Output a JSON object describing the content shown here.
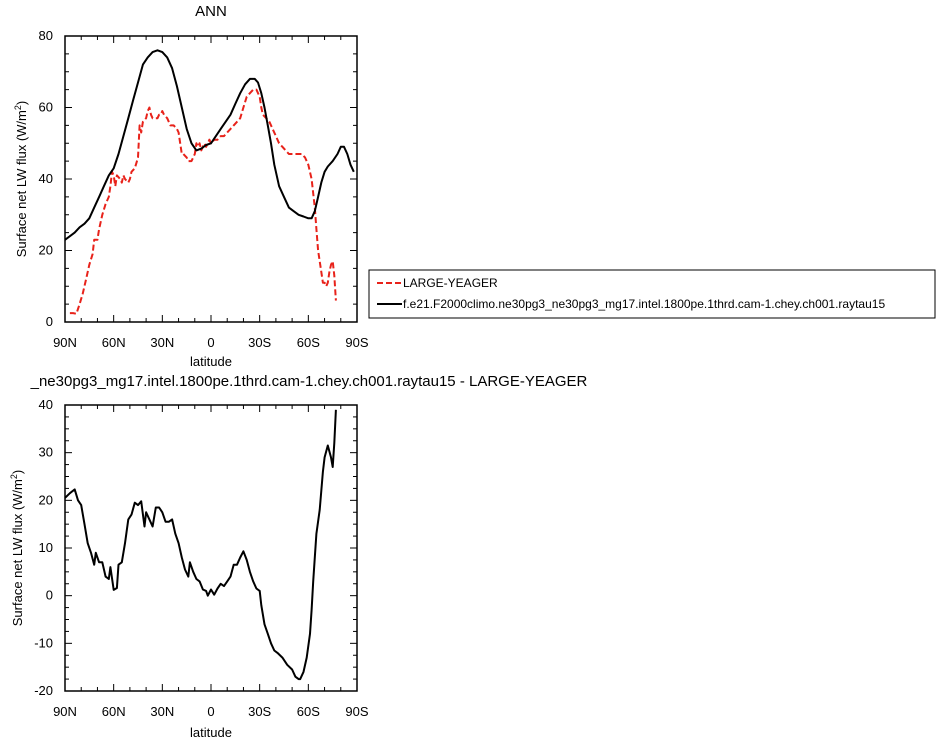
{
  "chart_data": [
    {
      "type": "line",
      "title": "ANN",
      "xlabel": "latitude",
      "ylabel": "Surface net LW flux (W/m",
      "ylabel_sup": "2",
      "ylabel_end": ")",
      "x_tick_labels": [
        "90N",
        "60N",
        "30N",
        "0",
        "30S",
        "60S",
        "90S"
      ],
      "x_tick_values": [
        90,
        60,
        30,
        0,
        -30,
        -60,
        -90
      ],
      "xlim": [
        90,
        -90
      ],
      "ylim": [
        0,
        80
      ],
      "y_ticks": [
        0,
        20,
        40,
        60,
        80
      ],
      "legend_position": "right",
      "series": [
        {
          "name": "LARGE-YEAGER",
          "color": "#e8221a",
          "dash": "dashed",
          "points": [
            [
              87,
              2.5
            ],
            [
              85,
              2.5
            ],
            [
              83,
              2.3
            ],
            [
              81,
              5
            ],
            [
              79,
              8
            ],
            [
              77,
              12
            ],
            [
              75,
              16
            ],
            [
              73,
              19
            ],
            [
              72,
              23
            ],
            [
              70,
              23
            ],
            [
              69,
              26
            ],
            [
              67,
              30
            ],
            [
              65,
              33
            ],
            [
              63,
              35
            ],
            [
              62,
              38
            ],
            [
              61,
              42
            ],
            [
              60,
              41
            ],
            [
              59,
              38
            ],
            [
              58,
              41
            ],
            [
              56,
              40
            ],
            [
              55,
              39
            ],
            [
              54,
              41
            ],
            [
              53,
              40
            ],
            [
              51,
              39
            ],
            [
              50,
              40
            ],
            [
              49,
              42
            ],
            [
              47,
              43
            ],
            [
              45,
              46
            ],
            [
              44,
              55
            ],
            [
              43,
              53
            ],
            [
              42,
              56
            ],
            [
              40,
              57
            ],
            [
              39,
              59
            ],
            [
              38,
              60
            ],
            [
              37,
              58
            ],
            [
              36,
              57
            ],
            [
              35,
              57
            ],
            [
              33,
              57
            ],
            [
              32,
              58
            ],
            [
              31,
              58
            ],
            [
              30,
              59
            ],
            [
              29,
              58
            ],
            [
              27,
              57
            ],
            [
              26,
              56
            ],
            [
              25,
              55
            ],
            [
              23,
              55
            ],
            [
              21,
              54
            ],
            [
              20,
              53
            ],
            [
              19,
              50
            ],
            [
              18,
              47
            ],
            [
              17,
              47
            ],
            [
              15,
              46
            ],
            [
              14,
              45
            ],
            [
              12,
              45
            ],
            [
              10,
              47
            ],
            [
              9,
              50
            ],
            [
              8,
              49
            ],
            [
              7,
              50
            ],
            [
              6,
              48
            ],
            [
              5,
              49
            ],
            [
              4,
              50
            ],
            [
              3,
              49
            ],
            [
              2,
              50
            ],
            [
              1,
              51
            ],
            [
              0,
              50
            ],
            [
              -2,
              51
            ],
            [
              -4,
              51
            ],
            [
              -6,
              52
            ],
            [
              -8,
              52
            ],
            [
              -10,
              53
            ],
            [
              -12,
              54
            ],
            [
              -14,
              55
            ],
            [
              -16,
              56
            ],
            [
              -18,
              57
            ],
            [
              -20,
              60
            ],
            [
              -22,
              63
            ],
            [
              -24,
              64
            ],
            [
              -26,
              65
            ],
            [
              -28,
              65
            ],
            [
              -30,
              63
            ],
            [
              -31,
              60
            ],
            [
              -32,
              58
            ],
            [
              -34,
              57
            ],
            [
              -36,
              56
            ],
            [
              -38,
              54
            ],
            [
              -40,
              52
            ],
            [
              -42,
              50
            ],
            [
              -44,
              49
            ],
            [
              -46,
              48
            ],
            [
              -48,
              47
            ],
            [
              -50,
              47
            ],
            [
              -52,
              47
            ],
            [
              -54,
              47
            ],
            [
              -56,
              47
            ],
            [
              -58,
              46
            ],
            [
              -60,
              44
            ],
            [
              -62,
              40
            ],
            [
              -63,
              36
            ],
            [
              -64,
              32
            ],
            [
              -65,
              26
            ],
            [
              -66,
              20
            ],
            [
              -67,
              17
            ],
            [
              -68,
              14
            ],
            [
              -69,
              11
            ],
            [
              -70,
              11
            ],
            [
              -71,
              10
            ],
            [
              -72,
              11
            ],
            [
              -73,
              14
            ],
            [
              -74,
              16
            ],
            [
              -75,
              17
            ],
            [
              -76,
              13
            ],
            [
              -77,
              6
            ]
          ]
        },
        {
          "name": "f.e21.F2000climo.ne30pg3_ne30pg3_mg17.intel.1800pe.1thrd.cam-1.chey.ch001.raytau15",
          "color": "#000000",
          "dash": "solid",
          "points": [
            [
              90,
              23
            ],
            [
              87,
              24
            ],
            [
              84,
              25
            ],
            [
              81,
              26.5
            ],
            [
              78,
              27.5
            ],
            [
              75,
              29
            ],
            [
              72,
              32
            ],
            [
              69,
              35
            ],
            [
              66,
              38
            ],
            [
              63,
              41
            ],
            [
              60,
              43
            ],
            [
              57,
              47
            ],
            [
              54,
              52
            ],
            [
              51,
              57
            ],
            [
              48,
              62
            ],
            [
              45,
              67
            ],
            [
              42,
              72
            ],
            [
              39,
              74
            ],
            [
              36,
              75.5
            ],
            [
              33,
              76
            ],
            [
              30,
              75.5
            ],
            [
              27,
              74
            ],
            [
              24,
              71
            ],
            [
              21,
              66
            ],
            [
              18,
              60
            ],
            [
              15,
              54
            ],
            [
              12,
              50
            ],
            [
              9,
              48
            ],
            [
              6,
              48.5
            ],
            [
              3,
              49.5
            ],
            [
              0,
              50
            ],
            [
              -3,
              52
            ],
            [
              -6,
              54
            ],
            [
              -9,
              56
            ],
            [
              -12,
              58
            ],
            [
              -15,
              61
            ],
            [
              -18,
              64
            ],
            [
              -21,
              66.5
            ],
            [
              -24,
              68
            ],
            [
              -27,
              68
            ],
            [
              -29,
              67
            ],
            [
              -31,
              64
            ],
            [
              -33,
              60
            ],
            [
              -35,
              55
            ],
            [
              -37,
              50
            ],
            [
              -39,
              44
            ],
            [
              -42,
              38
            ],
            [
              -45,
              35
            ],
            [
              -48,
              32
            ],
            [
              -51,
              31
            ],
            [
              -54,
              30
            ],
            [
              -57,
              29.5
            ],
            [
              -60,
              29
            ],
            [
              -62,
              29
            ],
            [
              -64,
              31
            ],
            [
              -66,
              35
            ],
            [
              -68,
              39
            ],
            [
              -70,
              42
            ],
            [
              -72,
              43.5
            ],
            [
              -75,
              45
            ],
            [
              -78,
              47
            ],
            [
              -80,
              49
            ],
            [
              -82,
              49
            ],
            [
              -84,
              47
            ],
            [
              -86,
              44
            ],
            [
              -88,
              42
            ]
          ]
        }
      ]
    },
    {
      "type": "line",
      "title": "_ne30pg3_mg17.intel.1800pe.1thrd.cam-1.chey.ch001.raytau15 - LARGE-YEAGER",
      "xlabel": "latitude",
      "ylabel": "Surface net LW flux (W/m",
      "ylabel_sup": "2",
      "ylabel_end": ")",
      "x_tick_labels": [
        "90N",
        "60N",
        "30N",
        "0",
        "30S",
        "60S",
        "90S"
      ],
      "x_tick_values": [
        90,
        60,
        30,
        0,
        -30,
        -60,
        -90
      ],
      "xlim": [
        90,
        -90
      ],
      "ylim": [
        -20,
        40
      ],
      "y_ticks": [
        -20,
        -10,
        0,
        10,
        20,
        30,
        40
      ],
      "series": [
        {
          "name": "",
          "color": "#000000",
          "dash": "solid",
          "points": [
            [
              90,
              20.5
            ],
            [
              87,
              21.5
            ],
            [
              84,
              22.3
            ],
            [
              82,
              20
            ],
            [
              80,
              19
            ],
            [
              78,
              15
            ],
            [
              76,
              11
            ],
            [
              74,
              9
            ],
            [
              72,
              6.5
            ],
            [
              71,
              9
            ],
            [
              69,
              7
            ],
            [
              67,
              7
            ],
            [
              65,
              4
            ],
            [
              63,
              3.5
            ],
            [
              62,
              6
            ],
            [
              60,
              1.2
            ],
            [
              58,
              1.6
            ],
            [
              57,
              6.5
            ],
            [
              55,
              7
            ],
            [
              53,
              11
            ],
            [
              51,
              16
            ],
            [
              49,
              17
            ],
            [
              47,
              19.5
            ],
            [
              45,
              19
            ],
            [
              43,
              19.8
            ],
            [
              41,
              14.5
            ],
            [
              40,
              17.5
            ],
            [
              38,
              16
            ],
            [
              36,
              14.5
            ],
            [
              34,
              18.5
            ],
            [
              32,
              18.5
            ],
            [
              30,
              17.5
            ],
            [
              28,
              15.5
            ],
            [
              26,
              15.5
            ],
            [
              24,
              16
            ],
            [
              22,
              13
            ],
            [
              20,
              11
            ],
            [
              18,
              8
            ],
            [
              16,
              5.5
            ],
            [
              14,
              4
            ],
            [
              13,
              7
            ],
            [
              11,
              5
            ],
            [
              9,
              3.5
            ],
            [
              7,
              3
            ],
            [
              5,
              1.3
            ],
            [
              3,
              1
            ],
            [
              2,
              0
            ],
            [
              0,
              1.3
            ],
            [
              -2,
              0.2
            ],
            [
              -4,
              1.5
            ],
            [
              -6,
              2.5
            ],
            [
              -8,
              2
            ],
            [
              -10,
              3
            ],
            [
              -12,
              4
            ],
            [
              -14,
              6.5
            ],
            [
              -16,
              6.5
            ],
            [
              -18,
              8
            ],
            [
              -20,
              9.3
            ],
            [
              -22,
              7.5
            ],
            [
              -24,
              5
            ],
            [
              -26,
              3
            ],
            [
              -28,
              1.5
            ],
            [
              -30,
              1
            ],
            [
              -31,
              -2
            ],
            [
              -33,
              -6
            ],
            [
              -35,
              -8
            ],
            [
              -37,
              -10
            ],
            [
              -39,
              -11.5
            ],
            [
              -41,
              -12
            ],
            [
              -44,
              -13
            ],
            [
              -47,
              -14.5
            ],
            [
              -50,
              -15.5
            ],
            [
              -52,
              -17
            ],
            [
              -54,
              -17.5
            ],
            [
              -55,
              -17.5
            ],
            [
              -57,
              -16
            ],
            [
              -59,
              -13
            ],
            [
              -61,
              -8
            ],
            [
              -62,
              -3
            ],
            [
              -63,
              3
            ],
            [
              -64,
              8
            ],
            [
              -65,
              13
            ],
            [
              -67,
              18
            ],
            [
              -68,
              22
            ],
            [
              -69,
              26
            ],
            [
              -70,
              29
            ],
            [
              -72,
              31.5
            ],
            [
              -74,
              29
            ],
            [
              -75,
              27
            ],
            [
              -76,
              32
            ],
            [
              -77,
              39
            ]
          ]
        }
      ]
    }
  ]
}
